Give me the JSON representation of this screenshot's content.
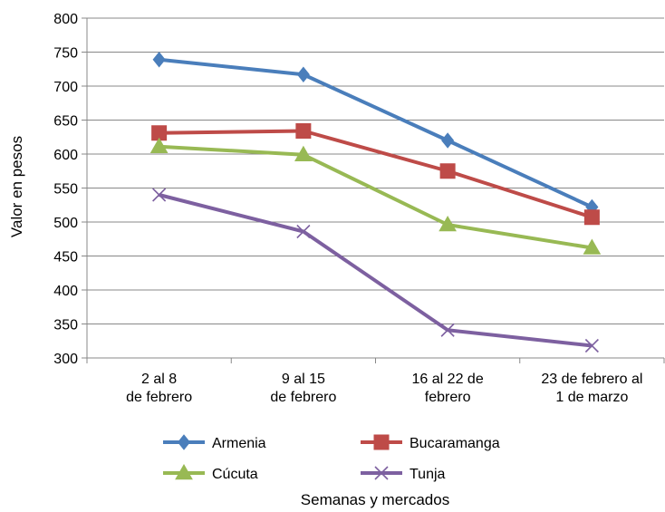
{
  "chart_data": {
    "type": "line",
    "title": "",
    "xlabel": "Semanas y mercados",
    "ylabel": "Valor en pesos",
    "ylim": [
      300,
      800
    ],
    "ytick_step": 50,
    "grid": true,
    "legend_position": "bottom",
    "categories": [
      [
        "2 al 8",
        "de febrero"
      ],
      [
        "9 al 15",
        "de febrero"
      ],
      [
        "16 al 22 de",
        "febrero"
      ],
      [
        "23 de febrero al",
        "1 de marzo"
      ]
    ],
    "series": [
      {
        "name": "Armenia",
        "values": [
          739,
          717,
          620,
          522
        ],
        "color": "#4A7EBB",
        "marker": "diamond"
      },
      {
        "name": "Bucaramanga",
        "values": [
          631,
          634,
          575,
          507
        ],
        "color": "#BE4B48",
        "marker": "square"
      },
      {
        "name": "Cúcuta",
        "values": [
          611,
          599,
          496,
          462
        ],
        "color": "#98B954",
        "marker": "triangle"
      },
      {
        "name": "Tunja",
        "values": [
          540,
          486,
          341,
          318
        ],
        "color": "#7D60A0",
        "marker": "x"
      }
    ]
  }
}
